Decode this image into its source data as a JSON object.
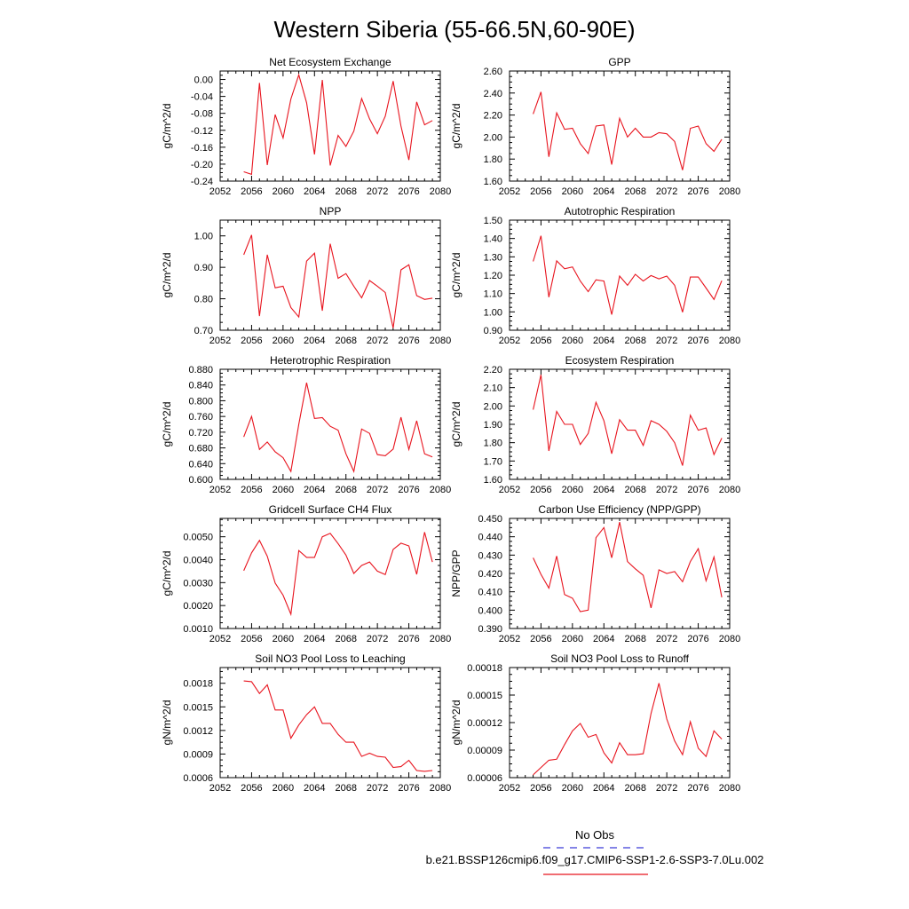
{
  "page": {
    "title": "Western Siberia (55-66.5N,60-90E)"
  },
  "legend": {
    "obs_label": "No Obs",
    "obs_color": "#3a3ad8",
    "model_label": "b.e21.BSSP126cmip6.f09_g17.CMIP6-SSP1-2.6-SSP3-7.0Lu.002",
    "model_color": "#e8141e"
  },
  "chart_data": [
    {
      "type": "line",
      "title": "Net Ecosystem Exchange",
      "ylabel": "gC/m^2/d",
      "xlim": [
        2052,
        2080
      ],
      "xticks": [
        "2052",
        "2056",
        "2060",
        "2064",
        "2068",
        "2072",
        "2076",
        "2080"
      ],
      "ylim": [
        -0.24,
        0.02
      ],
      "yticks": [
        "0.00",
        "-0.04",
        "-0.08",
        "-0.12",
        "-0.16",
        "-0.20",
        "-0.24"
      ],
      "series": [
        {
          "x": [
            2055,
            2056,
            2057,
            2058,
            2059,
            2060,
            2061,
            2062,
            2063,
            2064,
            2065,
            2066,
            2067,
            2068,
            2069,
            2070,
            2071,
            2072,
            2073,
            2074,
            2075,
            2076,
            2077,
            2078,
            2079
          ],
          "values": [
            -0.218,
            -0.224,
            -0.008,
            -0.202,
            -0.083,
            -0.138,
            -0.046,
            0.011,
            -0.055,
            -0.177,
            -0.001,
            -0.203,
            -0.132,
            -0.158,
            -0.122,
            -0.045,
            -0.093,
            -0.128,
            -0.087,
            -0.004,
            -0.11,
            -0.19,
            -0.053,
            -0.107,
            -0.097
          ]
        }
      ]
    },
    {
      "type": "line",
      "title": "GPP",
      "ylabel": "gC/m^2/d",
      "xlim": [
        2052,
        2080
      ],
      "xticks": [
        "2052",
        "2056",
        "2060",
        "2064",
        "2068",
        "2072",
        "2076",
        "2080"
      ],
      "ylim": [
        1.6,
        2.6
      ],
      "yticks": [
        "1.60",
        "1.80",
        "2.00",
        "2.20",
        "2.40",
        "2.60"
      ],
      "series": [
        {
          "x": [
            2055,
            2056,
            2057,
            2058,
            2059,
            2060,
            2061,
            2062,
            2063,
            2064,
            2065,
            2066,
            2067,
            2068,
            2069,
            2070,
            2071,
            2072,
            2073,
            2074,
            2075,
            2076,
            2077,
            2078,
            2079
          ],
          "values": [
            2.21,
            2.41,
            1.82,
            2.22,
            2.07,
            2.08,
            1.94,
            1.85,
            2.1,
            2.11,
            1.75,
            2.17,
            2.0,
            2.08,
            2.0,
            2.0,
            2.04,
            2.03,
            1.96,
            1.7,
            2.08,
            2.1,
            1.94,
            1.87,
            1.98
          ]
        }
      ]
    },
    {
      "type": "line",
      "title": "NPP",
      "ylabel": "gC/m^2/d",
      "xlim": [
        2052,
        2080
      ],
      "xticks": [
        "2052",
        "2056",
        "2060",
        "2064",
        "2068",
        "2072",
        "2076",
        "2080"
      ],
      "ylim": [
        0.7,
        1.05
      ],
      "yticks": [
        "0.70",
        "0.80",
        "0.90",
        "1.00"
      ],
      "series": [
        {
          "x": [
            2055,
            2056,
            2057,
            2058,
            2059,
            2060,
            2061,
            2062,
            2063,
            2064,
            2065,
            2066,
            2067,
            2068,
            2069,
            2070,
            2071,
            2072,
            2073,
            2074,
            2075,
            2076,
            2077,
            2078,
            2079
          ],
          "values": [
            0.94,
            1.003,
            0.745,
            0.94,
            0.835,
            0.84,
            0.772,
            0.742,
            0.92,
            0.945,
            0.762,
            0.975,
            0.865,
            0.88,
            0.84,
            0.803,
            0.858,
            0.84,
            0.82,
            0.707,
            0.892,
            0.908,
            0.81,
            0.798,
            0.802
          ]
        }
      ]
    },
    {
      "type": "line",
      "title": "Autotrophic Respiration",
      "ylabel": "gC/m^2/d",
      "xlim": [
        2052,
        2080
      ],
      "xticks": [
        "2052",
        "2056",
        "2060",
        "2064",
        "2068",
        "2072",
        "2076",
        "2080"
      ],
      "ylim": [
        0.9,
        1.5
      ],
      "yticks": [
        "0.90",
        "1.00",
        "1.10",
        "1.20",
        "1.30",
        "1.40",
        "1.50"
      ],
      "series": [
        {
          "x": [
            2055,
            2056,
            2057,
            2058,
            2059,
            2060,
            2061,
            2062,
            2063,
            2064,
            2065,
            2066,
            2067,
            2068,
            2069,
            2070,
            2071,
            2072,
            2073,
            2074,
            2075,
            2076,
            2077,
            2078,
            2079
          ],
          "values": [
            1.275,
            1.415,
            1.08,
            1.278,
            1.235,
            1.245,
            1.168,
            1.11,
            1.175,
            1.168,
            0.985,
            1.195,
            1.145,
            1.205,
            1.168,
            1.198,
            1.18,
            1.195,
            1.145,
            0.998,
            1.19,
            1.19,
            1.13,
            1.068,
            1.17
          ]
        }
      ]
    },
    {
      "type": "line",
      "title": "Heterotrophic Respiration",
      "ylabel": "gC/m^2/d",
      "xlim": [
        2052,
        2080
      ],
      "xticks": [
        "2052",
        "2056",
        "2060",
        "2064",
        "2068",
        "2072",
        "2076",
        "2080"
      ],
      "ylim": [
        0.6,
        0.88
      ],
      "yticks": [
        "0.600",
        "0.640",
        "0.680",
        "0.720",
        "0.760",
        "0.800",
        "0.840",
        "0.880"
      ],
      "series": [
        {
          "x": [
            2055,
            2056,
            2057,
            2058,
            2059,
            2060,
            2061,
            2062,
            2063,
            2064,
            2065,
            2066,
            2067,
            2068,
            2069,
            2070,
            2071,
            2072,
            2073,
            2074,
            2075,
            2076,
            2077,
            2078,
            2079
          ],
          "values": [
            0.708,
            0.76,
            0.676,
            0.695,
            0.67,
            0.655,
            0.62,
            0.74,
            0.846,
            0.755,
            0.757,
            0.735,
            0.725,
            0.665,
            0.62,
            0.728,
            0.717,
            0.663,
            0.66,
            0.677,
            0.758,
            0.676,
            0.749,
            0.665,
            0.657
          ]
        }
      ]
    },
    {
      "type": "line",
      "title": "Ecosystem Respiration",
      "ylabel": "gC/m^2/d",
      "xlim": [
        2052,
        2080
      ],
      "xticks": [
        "2052",
        "2056",
        "2060",
        "2064",
        "2068",
        "2072",
        "2076",
        "2080"
      ],
      "ylim": [
        1.6,
        2.2
      ],
      "yticks": [
        "1.60",
        "1.70",
        "1.80",
        "1.90",
        "2.00",
        "2.10",
        "2.20"
      ],
      "series": [
        {
          "x": [
            2055,
            2056,
            2057,
            2058,
            2059,
            2060,
            2061,
            2062,
            2063,
            2064,
            2065,
            2066,
            2067,
            2068,
            2069,
            2070,
            2071,
            2072,
            2073,
            2074,
            2075,
            2076,
            2077,
            2078,
            2079
          ],
          "values": [
            1.98,
            2.17,
            1.755,
            1.97,
            1.9,
            1.9,
            1.79,
            1.85,
            2.02,
            1.92,
            1.74,
            1.925,
            1.868,
            1.868,
            1.785,
            1.92,
            1.9,
            1.862,
            1.8,
            1.675,
            1.95,
            1.868,
            1.88,
            1.735,
            1.825
          ]
        }
      ]
    },
    {
      "type": "line",
      "title": "Gridcell Surface CH4 Flux",
      "ylabel": "gC/m^2/d",
      "xlim": [
        2052,
        2080
      ],
      "xticks": [
        "2052",
        "2056",
        "2060",
        "2064",
        "2068",
        "2072",
        "2076",
        "2080"
      ],
      "ylim": [
        0.001,
        0.0058
      ],
      "yticks": [
        "0.0010",
        "0.0020",
        "0.0030",
        "0.0040",
        "0.0050"
      ],
      "series": [
        {
          "x": [
            2055,
            2056,
            2057,
            2058,
            2059,
            2060,
            2061,
            2062,
            2063,
            2064,
            2065,
            2066,
            2067,
            2068,
            2069,
            2070,
            2071,
            2072,
            2073,
            2074,
            2075,
            2076,
            2077,
            2078,
            2079
          ],
          "values": [
            0.00352,
            0.0043,
            0.00484,
            0.00415,
            0.00298,
            0.00245,
            0.00162,
            0.0044,
            0.0041,
            0.0041,
            0.005,
            0.00515,
            0.0047,
            0.0042,
            0.0034,
            0.00375,
            0.0039,
            0.0035,
            0.00335,
            0.00445,
            0.00472,
            0.0046,
            0.00336,
            0.0052,
            0.0039
          ]
        }
      ]
    },
    {
      "type": "line",
      "title": "Carbon Use Efficiency (NPP/GPP)",
      "ylabel": "NPP/GPP",
      "xlim": [
        2052,
        2080
      ],
      "xticks": [
        "2052",
        "2056",
        "2060",
        "2064",
        "2068",
        "2072",
        "2076",
        "2080"
      ],
      "ylim": [
        0.39,
        0.45
      ],
      "yticks": [
        "0.390",
        "0.400",
        "0.410",
        "0.420",
        "0.430",
        "0.440",
        "0.450"
      ],
      "series": [
        {
          "x": [
            2055,
            2056,
            2057,
            2058,
            2059,
            2060,
            2061,
            2062,
            2063,
            2064,
            2065,
            2066,
            2067,
            2068,
            2069,
            2070,
            2071,
            2072,
            2073,
            2074,
            2075,
            2076,
            2077,
            2078,
            2079
          ],
          "values": [
            0.4285,
            0.4195,
            0.412,
            0.4295,
            0.4085,
            0.4065,
            0.3992,
            0.4,
            0.4395,
            0.445,
            0.4285,
            0.448,
            0.4265,
            0.4225,
            0.419,
            0.4012,
            0.422,
            0.42,
            0.421,
            0.4155,
            0.4265,
            0.4335,
            0.416,
            0.429,
            0.407
          ]
        }
      ]
    },
    {
      "type": "line",
      "title": "Soil NO3 Pool Loss to Leaching",
      "ylabel": "gN/m^2/d",
      "xlim": [
        2052,
        2080
      ],
      "xticks": [
        "2052",
        "2056",
        "2060",
        "2064",
        "2068",
        "2072",
        "2076",
        "2080"
      ],
      "ylim": [
        0.0006,
        0.002
      ],
      "yticks": [
        "0.0006",
        "0.0009",
        "0.0012",
        "0.0015",
        "0.0018"
      ],
      "series": [
        {
          "x": [
            2055,
            2056,
            2057,
            2058,
            2059,
            2060,
            2061,
            2062,
            2063,
            2064,
            2065,
            2066,
            2067,
            2068,
            2069,
            2070,
            2071,
            2072,
            2073,
            2074,
            2075,
            2076,
            2077,
            2078,
            2079
          ],
          "values": [
            0.00183,
            0.00182,
            0.00167,
            0.00178,
            0.00146,
            0.00146,
            0.0011,
            0.00127,
            0.0014,
            0.0015,
            0.00129,
            0.00129,
            0.00115,
            0.00105,
            0.00105,
            0.00087,
            0.00091,
            0.00087,
            0.00086,
            0.00073,
            0.00074,
            0.00082,
            0.00069,
            0.00068,
            0.00069
          ]
        }
      ]
    },
    {
      "type": "line",
      "title": "Soil NO3 Pool Loss to Runoff",
      "ylabel": "gN/m^2/d",
      "xlim": [
        2052,
        2080
      ],
      "xticks": [
        "2052",
        "2056",
        "2060",
        "2064",
        "2068",
        "2072",
        "2076",
        "2080"
      ],
      "ylim": [
        6e-05,
        0.00018
      ],
      "yticks": [
        "0.00006",
        "0.00009",
        "0.00012",
        "0.00015",
        "0.00018"
      ],
      "series": [
        {
          "x": [
            2055,
            2056,
            2057,
            2058,
            2059,
            2060,
            2061,
            2062,
            2063,
            2064,
            2065,
            2066,
            2067,
            2068,
            2069,
            2070,
            2071,
            2072,
            2073,
            2074,
            2075,
            2076,
            2077,
            2078,
            2079
          ],
          "values": [
            6.3e-05,
            7.1e-05,
            7.9e-05,
            8e-05,
            9.6e-05,
            0.000111,
            0.000119,
            0.000104,
            0.000107,
            8.7e-05,
            7.6e-05,
            9.8e-05,
            8.5e-05,
            8.5e-05,
            8.6e-05,
            0.00013,
            0.000163,
            0.000124,
            0.0001,
            8.5e-05,
            0.000121,
            9.2e-05,
            8.3e-05,
            0.000111,
            0.000102
          ]
        }
      ]
    }
  ]
}
